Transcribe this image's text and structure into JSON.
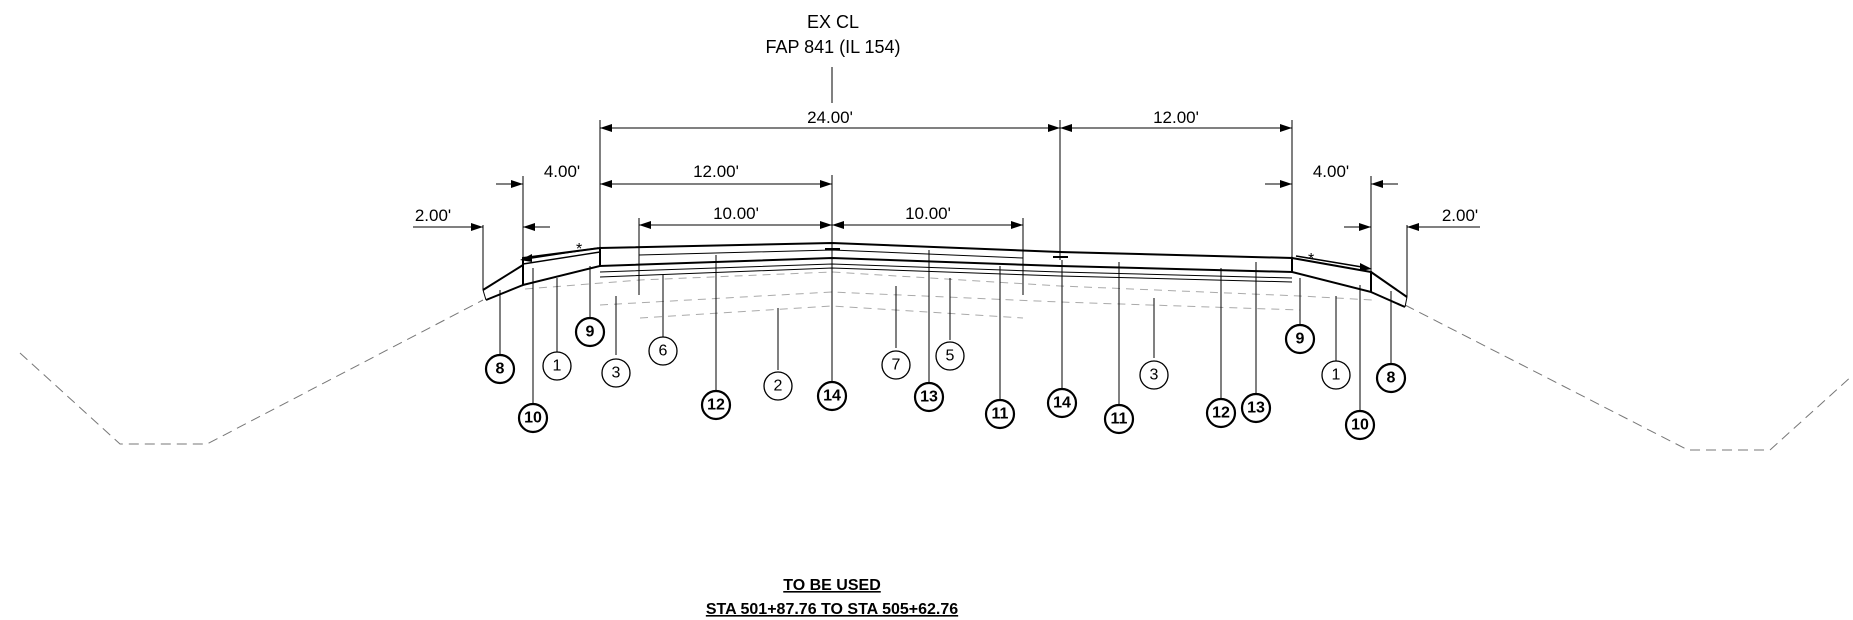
{
  "header": {
    "line1": "EX CL",
    "line2": "FAP 841  (IL 154)"
  },
  "dimensions": {
    "total_width": "24.00'",
    "right_lane": "12.00'",
    "left_lane": "12.00'",
    "left_widening": "10.00'",
    "right_widening": "10.00'",
    "left_shoulder": "4.00'",
    "right_shoulder": "4.00'",
    "left_outer": "2.00'",
    "right_outer": "2.00'"
  },
  "star_marker": "*",
  "callouts": {
    "c1": "1",
    "c2": "2",
    "c3": "3",
    "c5": "5",
    "c6": "6",
    "c7": "7",
    "c8": "8",
    "c9": "9",
    "c10": "10",
    "c11": "11",
    "c12": "12",
    "c13": "13",
    "c14": "14"
  },
  "footer": {
    "line1": "TO BE USED",
    "line2": "STA 501+87.76 TO STA 505+62.76"
  }
}
